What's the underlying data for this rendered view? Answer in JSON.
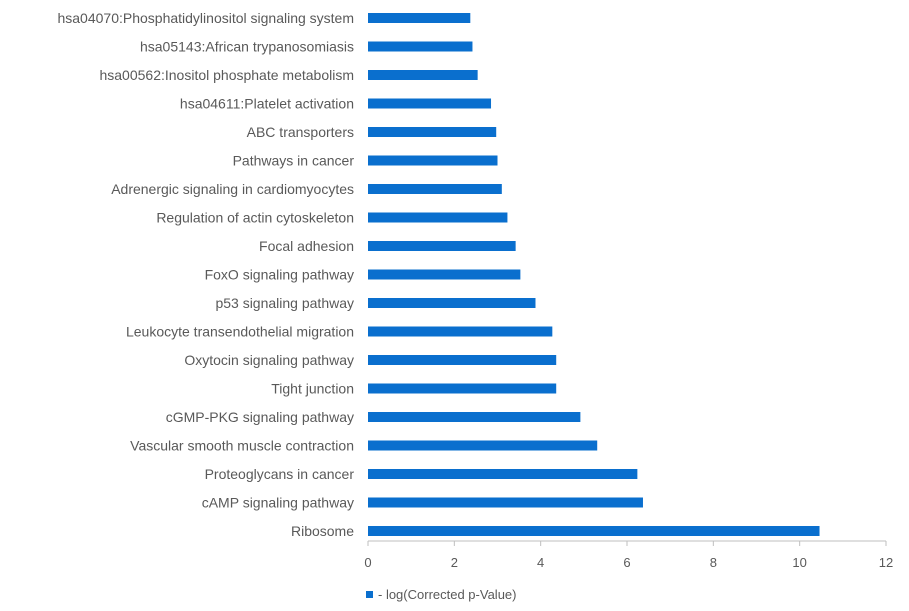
{
  "chart_data": {
    "type": "bar",
    "orientation": "horizontal",
    "categories": [
      "hsa04070:Phosphatidylinositol signaling system",
      "hsa05143:African trypanosomiasis",
      "hsa00562:Inositol phosphate metabolism",
      "hsa04611:Platelet activation",
      "ABC transporters",
      "Pathways in cancer",
      "Adrenergic signaling in cardiomyocytes",
      "Regulation of actin cytoskeleton",
      "Focal adhesion",
      "FoxO signaling pathway",
      "p53 signaling pathway",
      "Leukocyte transendothelial migration",
      "Oxytocin signaling pathway",
      "Tight junction",
      "cGMP-PKG signaling pathway",
      "Vascular smooth muscle contraction",
      "Proteoglycans in cancer",
      "cAMP signaling pathway",
      "Ribosome"
    ],
    "series": [
      {
        "name": "- log(Corrected p-Value)",
        "values": [
          2.37,
          2.42,
          2.54,
          2.85,
          2.97,
          3.0,
          3.1,
          3.23,
          3.42,
          3.53,
          3.88,
          4.27,
          4.36,
          4.36,
          4.92,
          5.31,
          6.24,
          6.37,
          10.46
        ]
      }
    ],
    "xlim": [
      0,
      12
    ],
    "xticks": [
      0,
      2,
      4,
      6,
      8,
      10,
      12
    ],
    "title": "",
    "xlabel": "",
    "ylabel": "",
    "grid": false,
    "legend_position": "bottom-left",
    "bar_color": "#0a6fce",
    "text_color": "#595959",
    "axis_color": "#bfbfbf"
  }
}
